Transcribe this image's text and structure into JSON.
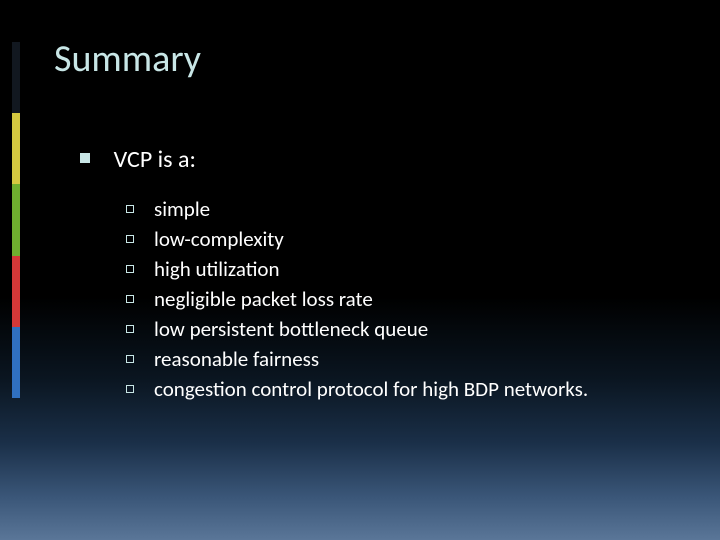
{
  "slide": {
    "title": "Summary",
    "title_color": "#c8e6e6",
    "title_fontsize": 38,
    "background_gradient": [
      "#000000",
      "#000000",
      "#1a2f48",
      "#5a7698"
    ],
    "accent_colors": [
      "#121820",
      "#d4c840",
      "#6faf2f",
      "#d43838",
      "#3070c0"
    ],
    "level1": {
      "bullet_color": "#c8e6e6",
      "text": "VCP is a:",
      "fontsize": 24,
      "text_color": "#ffffff"
    },
    "sublist": {
      "bullet_color": "#c8e6e6",
      "fontsize": 21,
      "text_color": "#ffffff",
      "items": [
        "simple",
        "low-complexity",
        "high utilization",
        "negligible packet loss rate",
        "low persistent bottleneck queue",
        "reasonable fairness",
        "congestion control protocol for high BDP networks."
      ]
    }
  }
}
